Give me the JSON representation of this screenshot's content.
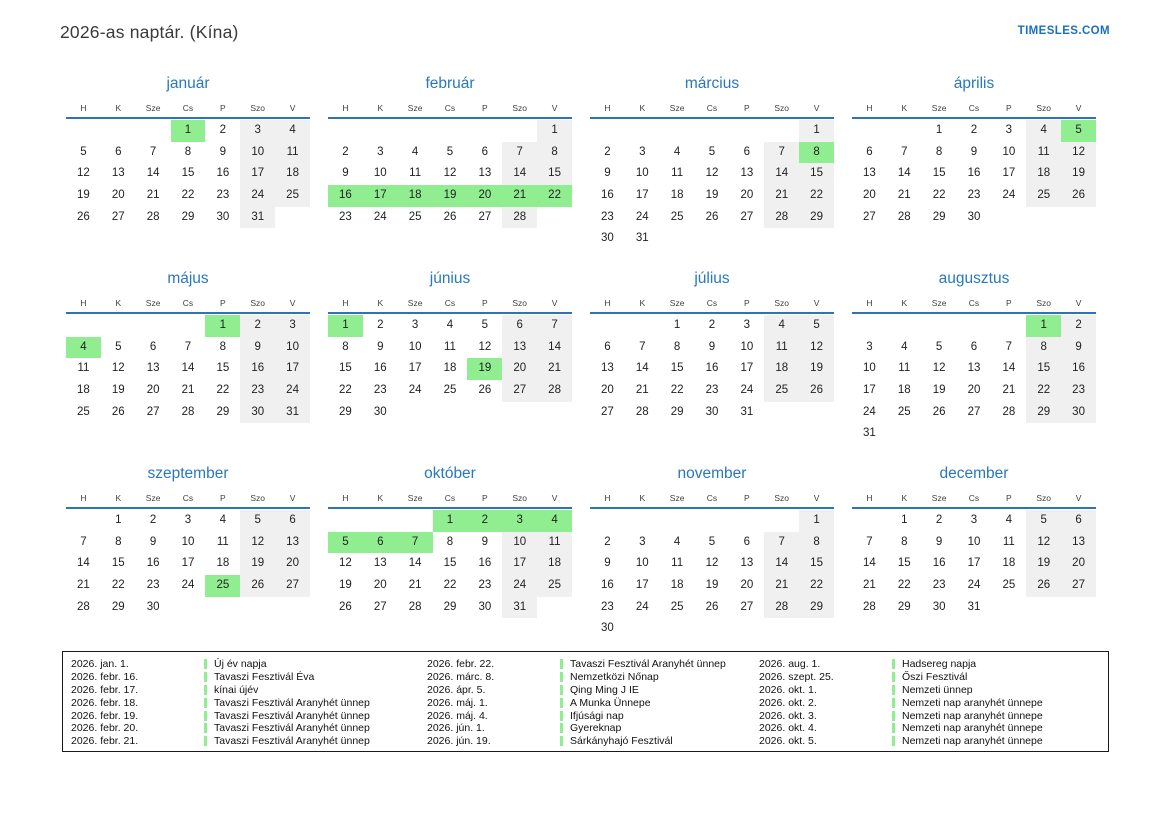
{
  "page": {
    "title": "2026-as naptár. (Kína)",
    "site": "TIMESLES.COM"
  },
  "colors": {
    "holiday_green": "#90ee90",
    "weekend_gray": "#f0f0f0",
    "title_blue": "#2878be",
    "line_blue": "#2e74b5",
    "link_blue": "#1b6fc0"
  },
  "calendar": {
    "weekday_headers": [
      "H",
      "K",
      "Sze",
      "Cs",
      "P",
      "Szo",
      "V"
    ],
    "months": [
      {
        "name": "január",
        "weeks": [
          [
            null,
            null,
            null,
            1,
            2,
            3,
            4
          ],
          [
            5,
            6,
            7,
            8,
            9,
            10,
            11
          ],
          [
            12,
            13,
            14,
            15,
            16,
            17,
            18
          ],
          [
            19,
            20,
            21,
            22,
            23,
            24,
            25
          ],
          [
            26,
            27,
            28,
            29,
            30,
            31,
            null
          ]
        ],
        "holidays": [
          1
        ]
      },
      {
        "name": "február",
        "weeks": [
          [
            null,
            null,
            null,
            null,
            null,
            null,
            1
          ],
          [
            2,
            3,
            4,
            5,
            6,
            7,
            8
          ],
          [
            9,
            10,
            11,
            12,
            13,
            14,
            15
          ],
          [
            16,
            17,
            18,
            19,
            20,
            21,
            22
          ],
          [
            23,
            24,
            25,
            26,
            27,
            28,
            null
          ]
        ],
        "holidays": [
          16,
          17,
          18,
          19,
          20,
          21,
          22
        ]
      },
      {
        "name": "március",
        "weeks": [
          [
            null,
            null,
            null,
            null,
            null,
            null,
            1
          ],
          [
            2,
            3,
            4,
            5,
            6,
            7,
            8
          ],
          [
            9,
            10,
            11,
            12,
            13,
            14,
            15
          ],
          [
            16,
            17,
            18,
            19,
            20,
            21,
            22
          ],
          [
            23,
            24,
            25,
            26,
            27,
            28,
            29
          ],
          [
            30,
            31,
            null,
            null,
            null,
            null,
            null
          ]
        ],
        "holidays": [
          8
        ]
      },
      {
        "name": "április",
        "weeks": [
          [
            null,
            null,
            1,
            2,
            3,
            4,
            5
          ],
          [
            6,
            7,
            8,
            9,
            10,
            11,
            12
          ],
          [
            13,
            14,
            15,
            16,
            17,
            18,
            19
          ],
          [
            20,
            21,
            22,
            23,
            24,
            25,
            26
          ],
          [
            27,
            28,
            29,
            30,
            null,
            null,
            null
          ]
        ],
        "holidays": [
          5
        ]
      },
      {
        "name": "május",
        "weeks": [
          [
            null,
            null,
            null,
            null,
            1,
            2,
            3
          ],
          [
            4,
            5,
            6,
            7,
            8,
            9,
            10
          ],
          [
            11,
            12,
            13,
            14,
            15,
            16,
            17
          ],
          [
            18,
            19,
            20,
            21,
            22,
            23,
            24
          ],
          [
            25,
            26,
            27,
            28,
            29,
            30,
            31
          ]
        ],
        "holidays": [
          1,
          4
        ]
      },
      {
        "name": "június",
        "weeks": [
          [
            1,
            2,
            3,
            4,
            5,
            6,
            7
          ],
          [
            8,
            9,
            10,
            11,
            12,
            13,
            14
          ],
          [
            15,
            16,
            17,
            18,
            19,
            20,
            21
          ],
          [
            22,
            23,
            24,
            25,
            26,
            27,
            28
          ],
          [
            29,
            30,
            null,
            null,
            null,
            null,
            null
          ]
        ],
        "holidays": [
          1,
          19
        ]
      },
      {
        "name": "július",
        "weeks": [
          [
            null,
            null,
            1,
            2,
            3,
            4,
            5
          ],
          [
            6,
            7,
            8,
            9,
            10,
            11,
            12
          ],
          [
            13,
            14,
            15,
            16,
            17,
            18,
            19
          ],
          [
            20,
            21,
            22,
            23,
            24,
            25,
            26
          ],
          [
            27,
            28,
            29,
            30,
            31,
            null,
            null
          ]
        ],
        "holidays": []
      },
      {
        "name": "augusztus",
        "weeks": [
          [
            null,
            null,
            null,
            null,
            null,
            1,
            2
          ],
          [
            3,
            4,
            5,
            6,
            7,
            8,
            9
          ],
          [
            10,
            11,
            12,
            13,
            14,
            15,
            16
          ],
          [
            17,
            18,
            19,
            20,
            21,
            22,
            23
          ],
          [
            24,
            25,
            26,
            27,
            28,
            29,
            30
          ],
          [
            31,
            null,
            null,
            null,
            null,
            null,
            null
          ]
        ],
        "holidays": [
          1
        ]
      },
      {
        "name": "szeptember",
        "weeks": [
          [
            null,
            1,
            2,
            3,
            4,
            5,
            6
          ],
          [
            7,
            8,
            9,
            10,
            11,
            12,
            13
          ],
          [
            14,
            15,
            16,
            17,
            18,
            19,
            20
          ],
          [
            21,
            22,
            23,
            24,
            25,
            26,
            27
          ],
          [
            28,
            29,
            30,
            null,
            null,
            null,
            null
          ]
        ],
        "holidays": [
          25
        ]
      },
      {
        "name": "október",
        "weeks": [
          [
            null,
            null,
            null,
            1,
            2,
            3,
            4
          ],
          [
            5,
            6,
            7,
            8,
            9,
            10,
            11
          ],
          [
            12,
            13,
            14,
            15,
            16,
            17,
            18
          ],
          [
            19,
            20,
            21,
            22,
            23,
            24,
            25
          ],
          [
            26,
            27,
            28,
            29,
            30,
            31,
            null
          ]
        ],
        "holidays": [
          1,
          2,
          3,
          4,
          5,
          6,
          7
        ]
      },
      {
        "name": "november",
        "weeks": [
          [
            null,
            null,
            null,
            null,
            null,
            null,
            1
          ],
          [
            2,
            3,
            4,
            5,
            6,
            7,
            8
          ],
          [
            9,
            10,
            11,
            12,
            13,
            14,
            15
          ],
          [
            16,
            17,
            18,
            19,
            20,
            21,
            22
          ],
          [
            23,
            24,
            25,
            26,
            27,
            28,
            29
          ],
          [
            30,
            null,
            null,
            null,
            null,
            null,
            null
          ]
        ],
        "holidays": []
      },
      {
        "name": "december",
        "weeks": [
          [
            null,
            1,
            2,
            3,
            4,
            5,
            6
          ],
          [
            7,
            8,
            9,
            10,
            11,
            12,
            13
          ],
          [
            14,
            15,
            16,
            17,
            18,
            19,
            20
          ],
          [
            21,
            22,
            23,
            24,
            25,
            26,
            27
          ],
          [
            28,
            29,
            30,
            31,
            null,
            null,
            null
          ]
        ],
        "holidays": []
      }
    ]
  },
  "legend": {
    "groups": [
      [
        {
          "date": "2026. jan. 1.",
          "name": "Új év napja"
        },
        {
          "date": "2026. febr. 16.",
          "name": "Tavaszi Fesztivál Éva"
        },
        {
          "date": "2026. febr. 17.",
          "name": "kínai újév"
        },
        {
          "date": "2026. febr. 18.",
          "name": "Tavaszi Fesztivál Aranyhét ünnep"
        },
        {
          "date": "2026. febr. 19.",
          "name": "Tavaszi Fesztivál Aranyhét ünnep"
        },
        {
          "date": "2026. febr. 20.",
          "name": "Tavaszi Fesztivál Aranyhét ünnep"
        },
        {
          "date": "2026. febr. 21.",
          "name": "Tavaszi Fesztivál Aranyhét ünnep"
        }
      ],
      [
        {
          "date": "2026. febr. 22.",
          "name": "Tavaszi Fesztivál Aranyhét ünnep"
        },
        {
          "date": "2026. márc. 8.",
          "name": "Nemzetközi Nőnap"
        },
        {
          "date": "2026. ápr. 5.",
          "name": "Qing Ming J IE"
        },
        {
          "date": "2026. máj. 1.",
          "name": "A Munka Ünnepe"
        },
        {
          "date": "2026. máj. 4.",
          "name": "Ifjúsági nap"
        },
        {
          "date": "2026. jún. 1.",
          "name": "Gyereknap"
        },
        {
          "date": "2026. jún. 19.",
          "name": "Sárkányhajó Fesztivál"
        }
      ],
      [
        {
          "date": "2026. aug. 1.",
          "name": "Hadsereg napja"
        },
        {
          "date": "2026. szept. 25.",
          "name": "Őszi Fesztivál"
        },
        {
          "date": "2026. okt. 1.",
          "name": "Nemzeti ünnep"
        },
        {
          "date": "2026. okt. 2.",
          "name": "Nemzeti nap aranyhét ünnepe"
        },
        {
          "date": "2026. okt. 3.",
          "name": "Nemzeti nap aranyhét ünnepe"
        },
        {
          "date": "2026. okt. 4.",
          "name": "Nemzeti nap aranyhét ünnepe"
        },
        {
          "date": "2026. okt. 5.",
          "name": "Nemzeti nap aranyhét ünnepe"
        }
      ]
    ]
  }
}
